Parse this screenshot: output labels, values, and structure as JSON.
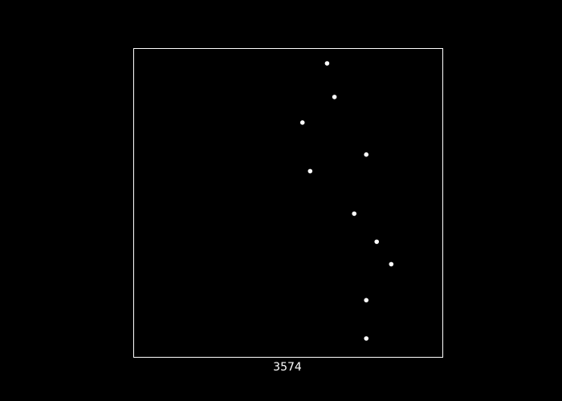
{
  "chart_data": {
    "type": "scatter",
    "title": "",
    "xlabel": "3574",
    "ylabel": "",
    "xlim": [
      0,
      100
    ],
    "ylim": [
      0,
      100
    ],
    "grid": false,
    "legend": "none",
    "axis_ticks": false,
    "colors": {
      "background": "#000000",
      "frame": "#ffffff",
      "points": "#ffffff",
      "text": "#ffffff"
    },
    "points": [
      {
        "x": 62.6,
        "y": 95.3
      },
      {
        "x": 65.0,
        "y": 84.4
      },
      {
        "x": 54.6,
        "y": 76.1
      },
      {
        "x": 75.3,
        "y": 65.7
      },
      {
        "x": 57.1,
        "y": 60.3
      },
      {
        "x": 71.4,
        "y": 46.5
      },
      {
        "x": 78.7,
        "y": 37.4
      },
      {
        "x": 83.4,
        "y": 30.1
      },
      {
        "x": 75.3,
        "y": 18.4
      },
      {
        "x": 75.3,
        "y": 6.0
      }
    ]
  }
}
